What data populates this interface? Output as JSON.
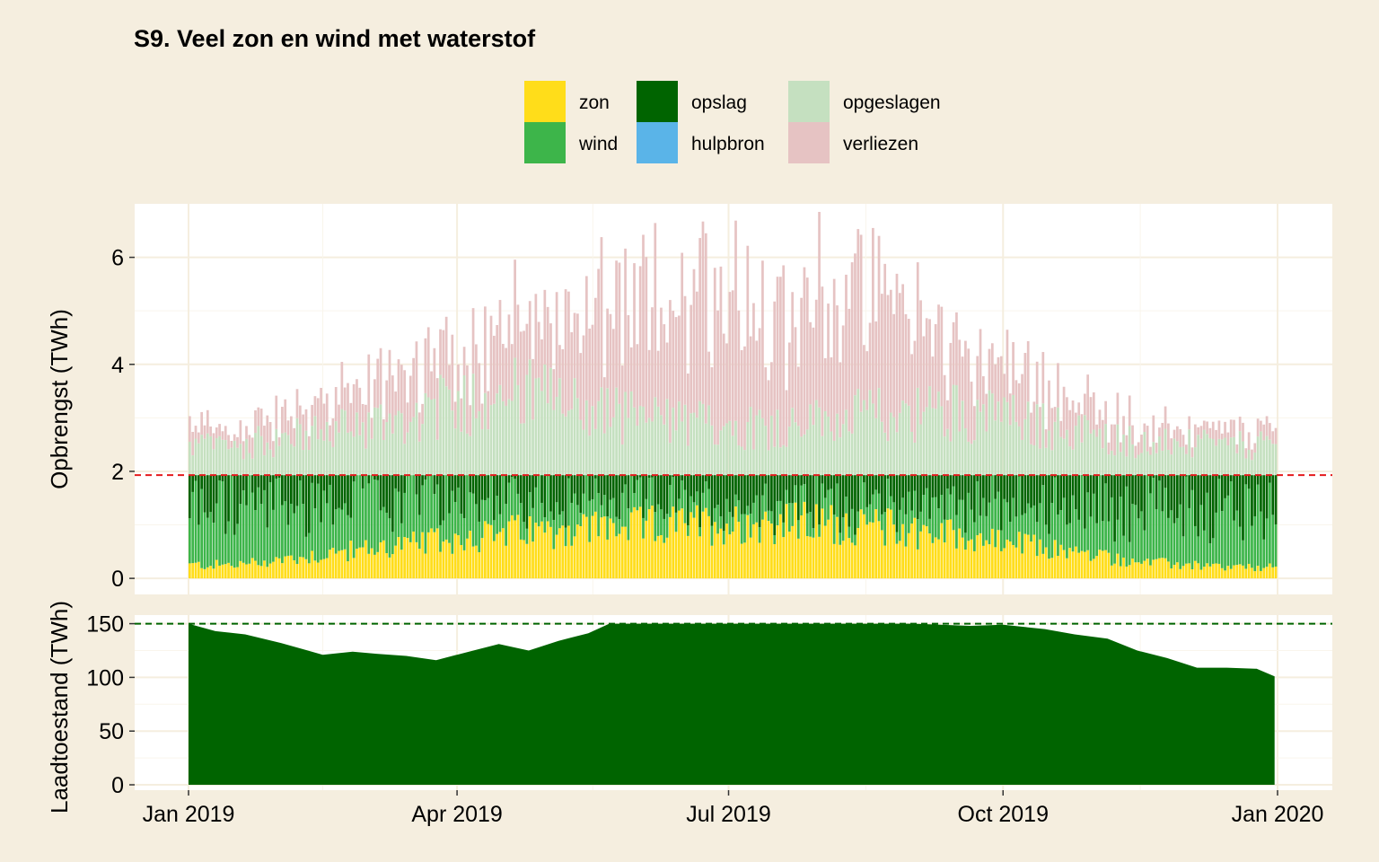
{
  "chart_data": [
    {
      "type": "bar",
      "stacked": true,
      "title": "S9. Veel zon en wind met waterstof",
      "ylabel": "Opbrengst (TWh)",
      "ylim": [
        -0.3,
        7.0
      ],
      "yticks": [
        0,
        2,
        4,
        6
      ],
      "grid": true,
      "legend_position": "top",
      "x_range": [
        "2019-01-01",
        "2019-12-31"
      ],
      "reference_line": {
        "value": 1.93,
        "style": "dashed",
        "color": "#e41a1c"
      },
      "series": [
        {
          "name": "zon",
          "color": "#ffdd1a",
          "monthly_avg": [
            0.25,
            0.45,
            0.65,
            0.85,
            0.95,
            1.0,
            1.05,
            1.0,
            0.8,
            0.55,
            0.3,
            0.2
          ]
        },
        {
          "name": "wind",
          "color": "#3db54a",
          "monthly_avg": [
            1.1,
            1.0,
            0.9,
            0.75,
            0.55,
            0.4,
            0.35,
            0.45,
            0.6,
            0.85,
            1.0,
            1.1
          ]
        },
        {
          "name": "opslag",
          "color": "#006400",
          "monthly_avg": [
            0.58,
            0.48,
            0.38,
            0.33,
            0.43,
            0.53,
            0.53,
            0.48,
            0.53,
            0.53,
            0.63,
            0.63
          ]
        },
        {
          "name": "hulpbron",
          "color": "#5ab4e8",
          "monthly_avg": [
            0,
            0,
            0,
            0,
            0,
            0,
            0,
            0,
            0,
            0,
            0,
            0
          ]
        },
        {
          "name": "opgeslagen",
          "color": "#c5e0c0",
          "monthly_avg": [
            0.55,
            0.8,
            1.1,
            1.6,
            1.2,
            0.95,
            0.9,
            1.1,
            1.2,
            0.9,
            0.6,
            0.55
          ]
        },
        {
          "name": "verliezen",
          "color": "#e6c3c3",
          "monthly_avg": [
            0.3,
            0.5,
            0.9,
            1.1,
            1.7,
            2.4,
            2.5,
            2.2,
            1.2,
            0.7,
            0.35,
            0.25
          ]
        }
      ]
    },
    {
      "type": "area",
      "ylabel": "Laadtoestand (TWh)",
      "ylim": [
        -5,
        158
      ],
      "yticks": [
        0,
        50,
        100,
        150
      ],
      "grid": true,
      "reference_line": {
        "value": 150,
        "style": "dashed",
        "color": "#006400"
      },
      "series": [
        {
          "name": "laadtoestand",
          "color": "#006400",
          "points": [
            [
              "2019-01-01",
              150
            ],
            [
              "2019-01-10",
              143
            ],
            [
              "2019-01-20",
              140
            ],
            [
              "2019-02-01",
              132
            ],
            [
              "2019-02-10",
              125
            ],
            [
              "2019-02-15",
              121
            ],
            [
              "2019-02-25",
              124
            ],
            [
              "2019-03-05",
              122
            ],
            [
              "2019-03-15",
              120
            ],
            [
              "2019-03-25",
              116
            ],
            [
              "2019-04-05",
              124
            ],
            [
              "2019-04-15",
              131
            ],
            [
              "2019-04-25",
              125
            ],
            [
              "2019-05-05",
              134
            ],
            [
              "2019-05-15",
              141
            ],
            [
              "2019-05-22",
              150
            ],
            [
              "2019-06-01",
              150
            ],
            [
              "2019-07-01",
              150
            ],
            [
              "2019-08-01",
              150
            ],
            [
              "2019-09-01",
              150
            ],
            [
              "2019-09-20",
              148
            ],
            [
              "2019-10-01",
              149
            ],
            [
              "2019-10-15",
              145
            ],
            [
              "2019-10-25",
              140
            ],
            [
              "2019-11-05",
              136
            ],
            [
              "2019-11-15",
              125
            ],
            [
              "2019-11-25",
              118
            ],
            [
              "2019-12-05",
              109
            ],
            [
              "2019-12-15",
              109
            ],
            [
              "2019-12-25",
              108
            ],
            [
              "2019-12-31",
              101
            ]
          ]
        }
      ],
      "x_ticks": [
        "Jan 2019",
        "Apr 2019",
        "Jul 2019",
        "Oct 2019",
        "Jan 2020"
      ]
    }
  ]
}
